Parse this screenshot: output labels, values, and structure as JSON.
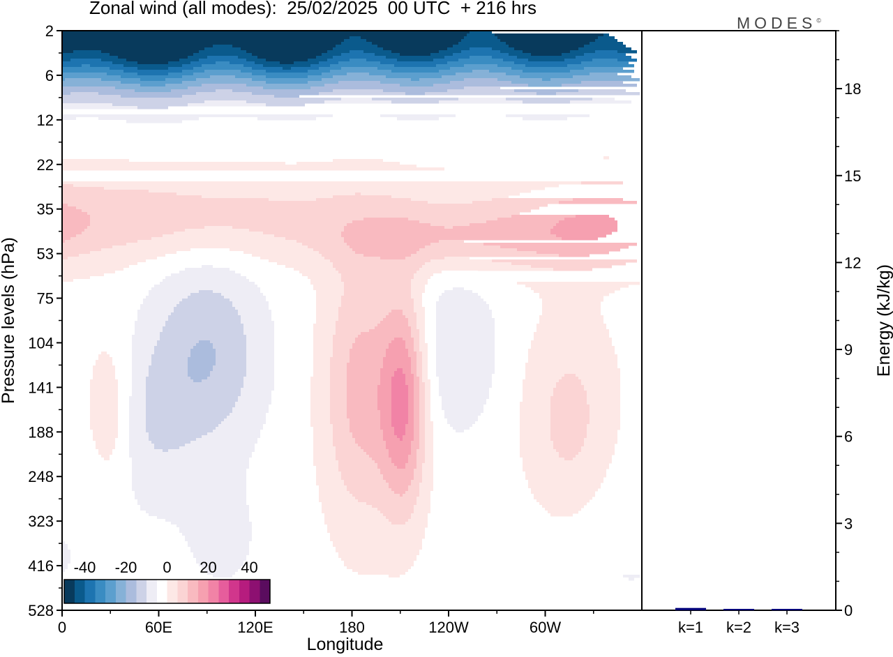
{
  "header": {
    "title": "Zonal wind (all modes):  25/02/2025  00 UTC  + 216 hrs",
    "brand": "MODES",
    "brand_mark": "©"
  },
  "chart_data": [
    {
      "type": "heatmap",
      "title": "Zonal wind (all modes):  25/02/2025  00 UTC  + 216 hrs",
      "xlabel": "Longitude",
      "ylabel": "Pressure levels (hPa)",
      "x_ticks": [
        "0",
        "60E",
        "120E",
        "180",
        "120W",
        "60W"
      ],
      "y_ticks": [
        "2",
        "6",
        "12",
        "22",
        "35",
        "53",
        "75",
        "104",
        "141",
        "188",
        "248",
        "323",
        "416",
        "528"
      ],
      "y_direction": "top-to-bottom increasing pressure",
      "colorbar": {
        "tick_labels": [
          "-40",
          "-20",
          "0",
          "20",
          "40"
        ],
        "levels": [
          -50,
          -45,
          -40,
          -35,
          -30,
          -25,
          -20,
          -15,
          -10,
          -5,
          0,
          5,
          10,
          15,
          20,
          25,
          30,
          35,
          40,
          45,
          50
        ],
        "colors": [
          "#083a5c",
          "#0a5a8c",
          "#1d74b0",
          "#3a8cc2",
          "#5c9fce",
          "#86b1d7",
          "#abbcdd",
          "#cdd2e7",
          "#eeedf5",
          "#ffffff",
          "#fde8e6",
          "#fbd4d4",
          "#f9bac0",
          "#f6a0b0",
          "#f183a6",
          "#e65d9c",
          "#d1368c",
          "#b61c7e",
          "#8d1071",
          "#5a0c5e"
        ]
      },
      "field_description_points": [
        {
          "lon": 30,
          "p": 4,
          "u": -45
        },
        {
          "lon": 120,
          "p": 3,
          "u": -40
        },
        {
          "lon": 150,
          "p": 3,
          "u": -45
        },
        {
          "lon": 300,
          "p": 8,
          "u": -30
        },
        {
          "lon": 180,
          "p": 14,
          "u": -10
        },
        {
          "lon": 180,
          "p": 40,
          "u": 8
        },
        {
          "lon": 250,
          "p": 45,
          "u": 12
        },
        {
          "lon": 210,
          "p": 180,
          "u": 28
        },
        {
          "lon": 180,
          "p": 170,
          "u": 15
        },
        {
          "lon": 80,
          "p": 130,
          "u": -18
        },
        {
          "lon": 240,
          "p": 130,
          "u": -10
        },
        {
          "lon": 300,
          "p": 180,
          "u": 12
        },
        {
          "lon": 30,
          "p": 180,
          "u": 8
        },
        {
          "lon": 100,
          "p": 350,
          "u": -6
        }
      ]
    },
    {
      "type": "bar",
      "ylabel": "Energy (kJ/kg)",
      "categories": [
        "k=1",
        "k=2",
        "k=3"
      ],
      "values": [
        0.08,
        0.02,
        0.015
      ],
      "ylim": [
        0,
        20
      ],
      "y_ticks": [
        "0",
        "3",
        "6",
        "9",
        "12",
        "15",
        "18"
      ],
      "bar_color": "#00007a"
    }
  ]
}
